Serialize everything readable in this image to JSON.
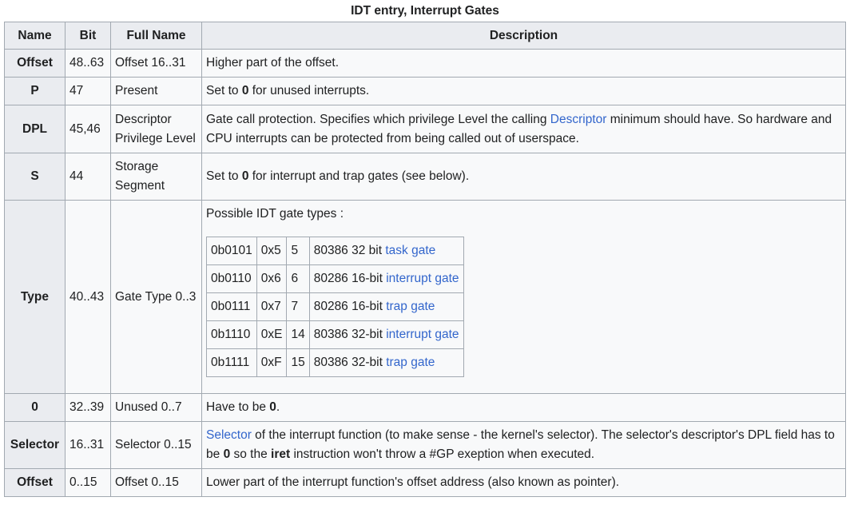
{
  "caption": "IDT entry, Interrupt Gates",
  "headers": {
    "name": "Name",
    "bit": "Bit",
    "full_name": "Full Name",
    "description": "Description"
  },
  "rows": {
    "offset_hi": {
      "name": "Offset",
      "bit": "48..63",
      "full": "Offset 16..31",
      "desc": "Higher part of the offset."
    },
    "p": {
      "name": "P",
      "bit": "47",
      "full": "Present",
      "desc_pre": "Set to ",
      "desc_bold": "0",
      "desc_post": " for unused interrupts."
    },
    "dpl": {
      "name": "DPL",
      "bit": "45,46",
      "full_line1": "Descriptor",
      "full_line2": "Privilege Level",
      "desc_pre": "Gate call protection. Specifies which privilege Level the calling ",
      "desc_link": "Descriptor",
      "desc_post": " minimum should have. So hardware and CPU interrupts can be protected from being called out of userspace."
    },
    "s": {
      "name": "S",
      "bit": "44",
      "full_line1": "Storage",
      "full_line2": "Segment",
      "desc_pre": "Set to ",
      "desc_bold": "0",
      "desc_post": " for interrupt and trap gates (see below)."
    },
    "type": {
      "name": "Type",
      "bit": "40..43",
      "full": "Gate Type 0..3",
      "intro": "Possible IDT gate types :"
    },
    "zero": {
      "name": "0",
      "bit": "32..39",
      "full": "Unused 0..7",
      "desc_pre": "Have to be ",
      "desc_bold": "0",
      "desc_post": "."
    },
    "selector": {
      "name": "Selector",
      "bit": "16..31",
      "full": "Selector 0..15",
      "desc_link": "Selector",
      "desc_mid": " of the interrupt function (to make sense - the kernel's selector). The selector's descriptor's DPL field has to be ",
      "desc_bold1": "0",
      "desc_mid2": " so the ",
      "desc_bold2": "iret",
      "desc_post": " instruction won't throw a #GP exeption when executed."
    },
    "offset_lo": {
      "name": "Offset",
      "bit": "0..15",
      "full": "Offset 0..15",
      "desc": "Lower part of the interrupt function's offset address (also known as pointer)."
    }
  },
  "gate_types": [
    {
      "bin": "0b0101",
      "hex": "0x5",
      "dec": "5",
      "desc": "80386 32 bit ",
      "link": "task gate"
    },
    {
      "bin": "0b0110",
      "hex": "0x6",
      "dec": "6",
      "desc": "80286 16-bit ",
      "link": "interrupt gate"
    },
    {
      "bin": "0b0111",
      "hex": "0x7",
      "dec": "7",
      "desc": "80286 16-bit ",
      "link": "trap gate"
    },
    {
      "bin": "0b1110",
      "hex": "0xE",
      "dec": "14",
      "desc": "80386 32-bit ",
      "link": "interrupt gate"
    },
    {
      "bin": "0b1111",
      "hex": "0xF",
      "dec": "15",
      "desc": "80386 32-bit ",
      "link": "trap gate"
    }
  ],
  "colors": {
    "header_bg": "#eaecf0",
    "cell_bg": "#f8f9fa",
    "border": "#a2a9b1",
    "link": "#3366cc"
  }
}
